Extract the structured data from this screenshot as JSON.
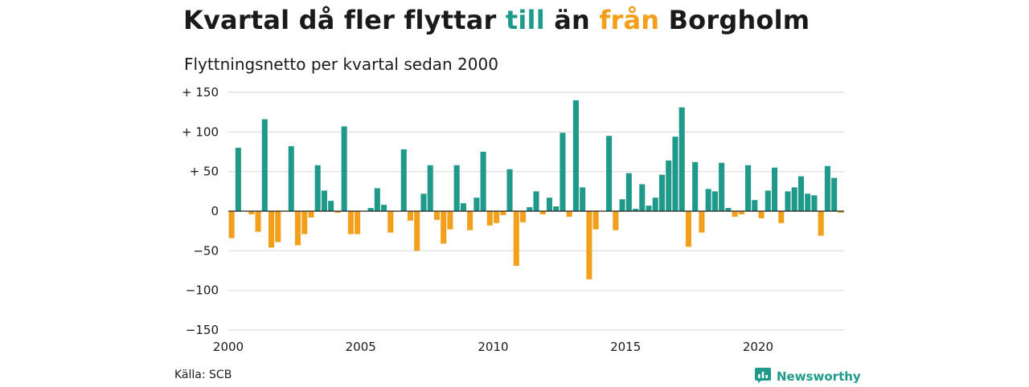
{
  "title": {
    "part1": "Kvartal då fler flyttar",
    "to_word": "till",
    "part2": "än",
    "from_word": "från",
    "part3": "Borgholm"
  },
  "subtitle": "Flyttningsnetto per kvartal sedan 2000",
  "source": "Källa: SCB",
  "brand": {
    "name": "Newsworthy",
    "icon": "newsworthy-logo-icon"
  },
  "colors": {
    "positive": "#1f9a8a",
    "negative": "#f2a01c",
    "grid": "#dddddd"
  },
  "chart_data": {
    "type": "bar",
    "title": "Kvartal då fler flyttar till än från Borgholm",
    "subtitle": "Flyttningsnetto per kvartal sedan 2000",
    "xlabel": "",
    "ylabel": "",
    "ylim": [
      -150,
      150
    ],
    "xlim": [
      2000,
      2023.25
    ],
    "y_ticks": [
      150,
      100,
      50,
      0,
      -50,
      -100,
      -150
    ],
    "y_tick_labels": [
      "+ 150",
      "+ 100",
      "+  50",
      "0",
      "−50",
      "−100",
      "−150"
    ],
    "x_ticks": [
      2000,
      2005,
      2010,
      2015,
      2020
    ],
    "x_tick_labels": [
      "2000",
      "2005",
      "2010",
      "2015",
      "2020"
    ],
    "grid": true,
    "legend": "none",
    "start_year": 2000,
    "categories": [
      "2000 K1",
      "2000 K2",
      "2000 K3",
      "2000 K4",
      "2001 K1",
      "2001 K2",
      "2001 K3",
      "2001 K4",
      "2002 K1",
      "2002 K2",
      "2002 K3",
      "2002 K4",
      "2003 K1",
      "2003 K2",
      "2003 K3",
      "2003 K4",
      "2004 K1",
      "2004 K2",
      "2004 K3",
      "2004 K4",
      "2005 K1",
      "2005 K2",
      "2005 K3",
      "2005 K4",
      "2006 K1",
      "2006 K2",
      "2006 K3",
      "2006 K4",
      "2007 K1",
      "2007 K2",
      "2007 K3",
      "2007 K4",
      "2008 K1",
      "2008 K2",
      "2008 K3",
      "2008 K4",
      "2009 K1",
      "2009 K2",
      "2009 K3",
      "2009 K4",
      "2010 K1",
      "2010 K2",
      "2010 K3",
      "2010 K4",
      "2011 K1",
      "2011 K2",
      "2011 K3",
      "2011 K4",
      "2012 K1",
      "2012 K2",
      "2012 K3",
      "2012 K4",
      "2013 K1",
      "2013 K2",
      "2013 K3",
      "2013 K4",
      "2014 K1",
      "2014 K2",
      "2014 K3",
      "2014 K4",
      "2015 K1",
      "2015 K2",
      "2015 K3",
      "2015 K4",
      "2016 K1",
      "2016 K2",
      "2016 K3",
      "2016 K4",
      "2017 K1",
      "2017 K2",
      "2017 K3",
      "2017 K4",
      "2018 K1",
      "2018 K2",
      "2018 K3",
      "2018 K4",
      "2019 K1",
      "2019 K2",
      "2019 K3",
      "2019 K4",
      "2020 K1",
      "2020 K2",
      "2020 K3",
      "2020 K4",
      "2021 K1",
      "2021 K2",
      "2021 K3",
      "2021 K4",
      "2022 K1",
      "2022 K2",
      "2022 K3",
      "2022 K4",
      "2023 K1"
    ],
    "values": [
      -34,
      80,
      0,
      -4,
      -26,
      116,
      -46,
      -39,
      0,
      82,
      -43,
      -29,
      -8,
      58,
      26,
      13,
      -2,
      107,
      -29,
      -29,
      0,
      4,
      29,
      8,
      -27,
      0,
      78,
      -12,
      -50,
      22,
      58,
      -11,
      -41,
      -23,
      58,
      10,
      -24,
      17,
      75,
      -18,
      -15,
      -5,
      53,
      -69,
      -14,
      5,
      25,
      -4,
      17,
      6,
      99,
      -7,
      140,
      30,
      -86,
      -23,
      0,
      95,
      -24,
      15,
      48,
      3,
      34,
      7,
      17,
      46,
      64,
      94,
      131,
      -45,
      62,
      -27,
      28,
      25,
      61,
      4,
      -7,
      -4,
      58,
      14,
      -9,
      26,
      55,
      -15,
      25,
      30,
      44,
      22,
      20,
      -31,
      57,
      42,
      -2
    ]
  }
}
